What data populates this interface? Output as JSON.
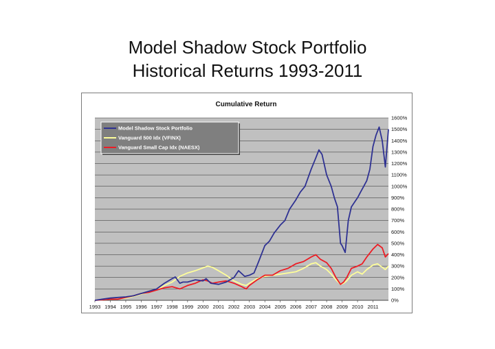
{
  "slide": {
    "title_line1": "Model Shadow Stock Portfolio",
    "title_line2": "Historical Returns 1993-2011"
  },
  "chart_data": {
    "type": "line",
    "title": "Cumulative Return",
    "xlabel": "",
    "ylabel": "",
    "xlim": [
      1993.0,
      2012.0
    ],
    "ylim": [
      0,
      1600
    ],
    "x_tick_labels": [
      "1993",
      "1994",
      "1995",
      "1996",
      "1997",
      "1998",
      "1999",
      "2000",
      "2001",
      "2002",
      "2003",
      "2004",
      "2005",
      "2006",
      "2007",
      "2008",
      "2009",
      "2010",
      "2011"
    ],
    "y_tick_labels": [
      "0%",
      "100%",
      "200%",
      "300%",
      "400%",
      "500%",
      "600%",
      "700%",
      "800%",
      "900%",
      "1000%",
      "1100%",
      "1200%",
      "1300%",
      "1400%",
      "1500%",
      "1600%"
    ],
    "grid": true,
    "legend_position": "top-left",
    "colors": {
      "plot_background": "#c0c0c0",
      "legend_background": "#7f7f7f",
      "gridline": "#2a2a2a"
    },
    "series": [
      {
        "name": "Model Shadow Stock Portfolio",
        "color": "#2e3192",
        "x": [
          1993.0,
          1993.5,
          1994.0,
          1994.5,
          1995.0,
          1995.5,
          1996.0,
          1996.5,
          1997.0,
          1997.5,
          1998.0,
          1998.2,
          1998.5,
          1998.7,
          1999.0,
          1999.5,
          2000.0,
          2000.2,
          2000.5,
          2001.0,
          2001.5,
          2002.0,
          2002.3,
          2002.7,
          2003.0,
          2003.3,
          2003.6,
          2004.0,
          2004.3,
          2004.6,
          2005.0,
          2005.3,
          2005.6,
          2006.0,
          2006.3,
          2006.6,
          2007.0,
          2007.3,
          2007.5,
          2007.7,
          2008.0,
          2008.3,
          2008.5,
          2008.7,
          2008.9,
          2009.0,
          2009.2,
          2009.4,
          2009.6,
          2009.8,
          2010.0,
          2010.2,
          2010.4,
          2010.6,
          2010.8,
          2011.0,
          2011.2,
          2011.4,
          2011.6,
          2011.8,
          2012.0
        ],
        "values": [
          0,
          10,
          20,
          25,
          30,
          40,
          60,
          80,
          100,
          150,
          190,
          205,
          150,
          160,
          160,
          180,
          170,
          190,
          150,
          140,
          160,
          200,
          260,
          210,
          220,
          240,
          340,
          480,
          520,
          590,
          660,
          700,
          800,
          880,
          950,
          1000,
          1150,
          1250,
          1320,
          1280,
          1100,
          1000,
          900,
          820,
          500,
          480,
          420,
          700,
          820,
          860,
          900,
          950,
          1000,
          1050,
          1150,
          1350,
          1450,
          1520,
          1400,
          1170,
          1500
        ]
      },
      {
        "name": "Vanguard 500 Idx (VFINX)",
        "color": "#ffff99",
        "x": [
          1993.0,
          1993.5,
          1994.0,
          1994.5,
          1995.0,
          1995.5,
          1996.0,
          1996.5,
          1997.0,
          1997.5,
          1998.0,
          1998.5,
          1999.0,
          1999.5,
          2000.0,
          2000.3,
          2000.6,
          2001.0,
          2001.5,
          2002.0,
          2002.5,
          2002.8,
          2003.0,
          2003.5,
          2004.0,
          2004.5,
          2005.0,
          2005.5,
          2006.0,
          2006.5,
          2007.0,
          2007.3,
          2007.6,
          2008.0,
          2008.3,
          2008.6,
          2008.9,
          2009.1,
          2009.3,
          2009.6,
          2010.0,
          2010.3,
          2010.6,
          2011.0,
          2011.3,
          2011.6,
          2011.8,
          2012.0
        ],
        "values": [
          0,
          5,
          10,
          12,
          20,
          35,
          55,
          70,
          90,
          130,
          160,
          210,
          240,
          260,
          285,
          300,
          290,
          260,
          220,
          170,
          140,
          130,
          150,
          190,
          210,
          220,
          230,
          240,
          250,
          280,
          320,
          330,
          300,
          270,
          230,
          180,
          140,
          150,
          170,
          220,
          250,
          230,
          270,
          310,
          320,
          290,
          270,
          300
        ]
      },
      {
        "name": "Vanguard Small Cap Idx (NAESX)",
        "color": "#ed1c24",
        "x": [
          1993.0,
          1993.5,
          1994.0,
          1994.5,
          1995.0,
          1995.5,
          1996.0,
          1996.5,
          1997.0,
          1997.5,
          1998.0,
          1998.5,
          1999.0,
          1999.5,
          2000.0,
          2000.3,
          2000.6,
          2001.0,
          2001.5,
          2002.0,
          2002.5,
          2002.8,
          2003.0,
          2003.5,
          2004.0,
          2004.5,
          2005.0,
          2005.5,
          2006.0,
          2006.5,
          2007.0,
          2007.3,
          2007.6,
          2008.0,
          2008.3,
          2008.6,
          2008.9,
          2009.1,
          2009.3,
          2009.6,
          2010.0,
          2010.3,
          2010.6,
          2011.0,
          2011.3,
          2011.6,
          2011.8,
          2012.0
        ],
        "values": [
          0,
          5,
          10,
          10,
          25,
          40,
          60,
          70,
          90,
          110,
          120,
          100,
          130,
          150,
          180,
          170,
          150,
          160,
          170,
          150,
          120,
          100,
          130,
          180,
          220,
          220,
          260,
          280,
          320,
          340,
          380,
          400,
          360,
          330,
          280,
          200,
          140,
          160,
          200,
          280,
          300,
          320,
          380,
          450,
          490,
          460,
          380,
          410
        ]
      }
    ]
  }
}
